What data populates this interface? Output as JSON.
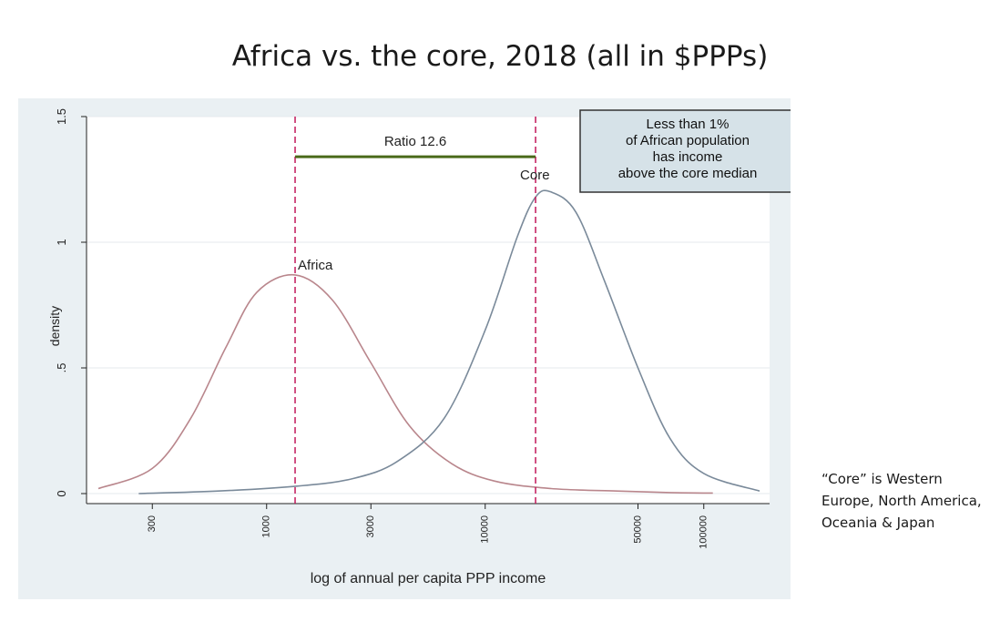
{
  "slide": {
    "title": "Africa vs. the core, 2018 (all in $PPPs)",
    "side_note": "“Core” is Western Europe, North America, Oceania & Japan"
  },
  "chart_data": {
    "type": "line",
    "title": "",
    "xlabel": "log of annual per capita PPP  income",
    "ylabel": "density",
    "x_scale": "log",
    "xlim": [
      150,
      200000
    ],
    "ylim": [
      0,
      1.5
    ],
    "x_ticks": [
      300,
      1000,
      3000,
      10000,
      50000,
      100000
    ],
    "x_tick_labels": [
      "300",
      "1000",
      "3000",
      "10000",
      "50000",
      "100000"
    ],
    "y_ticks": [
      0,
      0.5,
      1,
      1.5
    ],
    "y_tick_labels": [
      "0",
      ".5",
      "1",
      "1.5"
    ],
    "grid": true,
    "series": [
      {
        "name": "Africa",
        "color": "#b9868c",
        "x": [
          170,
          300,
          450,
          650,
          900,
          1350,
          2000,
          3000,
          4500,
          7000,
          11000,
          20000,
          40000,
          70000,
          110000
        ],
        "y": [
          0.02,
          0.1,
          0.3,
          0.58,
          0.8,
          0.87,
          0.77,
          0.52,
          0.27,
          0.12,
          0.05,
          0.02,
          0.01,
          0.004,
          0.002
        ]
      },
      {
        "name": "Core",
        "color": "#7a8a9a",
        "x": [
          260,
          600,
          1400,
          2500,
          4000,
          6500,
          10000,
          14000,
          17000,
          20000,
          26000,
          35000,
          50000,
          70000,
          100000,
          180000
        ],
        "y": [
          0.0,
          0.01,
          0.03,
          0.06,
          0.13,
          0.3,
          0.65,
          1.02,
          1.18,
          1.2,
          1.12,
          0.85,
          0.5,
          0.22,
          0.08,
          0.01
        ]
      }
    ],
    "reference_lines": [
      {
        "label": "Africa",
        "x": 1350,
        "color": "#c2185b"
      },
      {
        "label": "Core",
        "x": 17000,
        "color": "#c2185b"
      }
    ],
    "ratio_bar": {
      "label": "Ratio 12.6",
      "x_start": 1350,
      "x_end": 17000,
      "y": 1.34,
      "color": "#4a6a1a"
    },
    "annotation": "Less than 1% of African population has income above the core median",
    "annotation_lines": [
      "Less than 1%",
      "of African population",
      "has income",
      "above the core median"
    ]
  }
}
